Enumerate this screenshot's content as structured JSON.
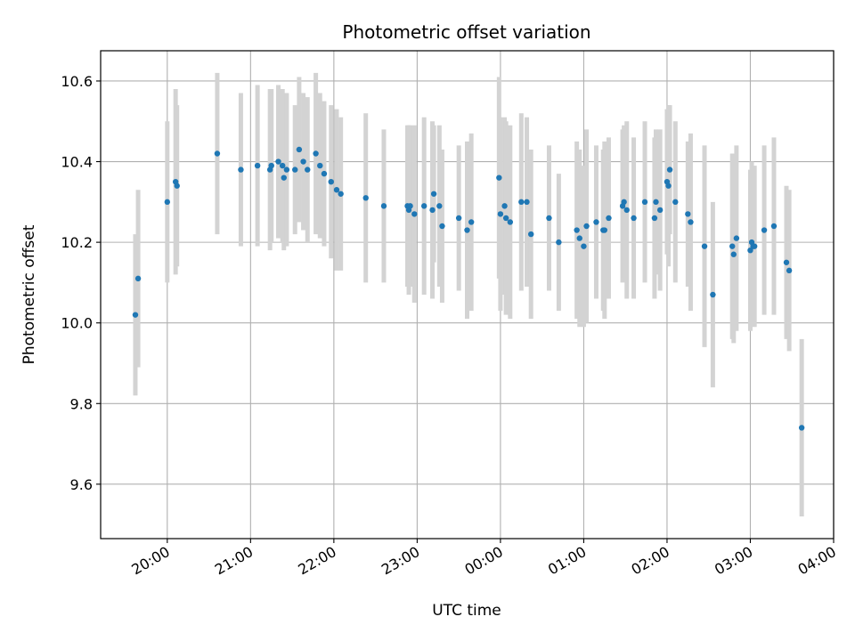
{
  "chart_data": {
    "type": "scatter",
    "title": "Photometric offset variation",
    "xlabel": "UTC time",
    "ylabel": "Photometric offset",
    "xlim": [
      "19:12",
      "04:00"
    ],
    "ylim": [
      9.465,
      10.675
    ],
    "grid": true,
    "x_ticks": [
      "20:00",
      "21:00",
      "22:00",
      "23:00",
      "00:00",
      "01:00",
      "02:00",
      "03:00",
      "04:00"
    ],
    "y_ticks": [
      9.6,
      9.8,
      10.0,
      10.2,
      10.4,
      10.6
    ],
    "marker_color": "#1f77b4",
    "errorbar_color": "#d3d3d3",
    "series": [
      {
        "x": [
          "19:37",
          "19:39",
          "20:00",
          "20:06",
          "20:07",
          "20:36",
          "20:53",
          "21:05",
          "21:14",
          "21:15",
          "21:20",
          "21:23",
          "21:24",
          "21:26",
          "21:32",
          "21:35",
          "21:38",
          "21:41",
          "21:47",
          "21:50",
          "21:53",
          "21:58",
          "22:02",
          "22:05",
          "22:23",
          "22:36",
          "22:53",
          "22:54",
          "22:55",
          "22:58",
          "23:05",
          "23:11",
          "23:12",
          "23:16",
          "23:18",
          "23:30",
          "23:36",
          "23:39",
          "23:59",
          "24:00",
          "24:03",
          "24:04",
          "24:07",
          "24:15",
          "24:19",
          "24:22",
          "24:35",
          "24:42",
          "24:55",
          "24:57",
          "25:00",
          "25:02",
          "25:09",
          "25:14",
          "25:15",
          "25:18",
          "25:28",
          "25:29",
          "25:31",
          "25:36",
          "25:44",
          "25:51",
          "25:52",
          "25:55",
          "26:00",
          "26:01",
          "26:02",
          "26:06",
          "26:15",
          "26:17",
          "26:27",
          "26:33",
          "26:47",
          "26:48",
          "26:50",
          "27:00",
          "27:01",
          "27:02",
          "27:03",
          "27:10",
          "27:17",
          "27:26",
          "27:28",
          "27:37"
        ],
        "y": [
          10.02,
          10.11,
          10.3,
          10.35,
          10.34,
          10.42,
          10.38,
          10.39,
          10.38,
          10.39,
          10.4,
          10.39,
          10.36,
          10.38,
          10.38,
          10.43,
          10.4,
          10.38,
          10.42,
          10.39,
          10.37,
          10.35,
          10.33,
          10.32,
          10.31,
          10.29,
          10.29,
          10.28,
          10.29,
          10.27,
          10.29,
          10.28,
          10.32,
          10.29,
          10.24,
          10.26,
          10.23,
          10.25,
          10.36,
          10.27,
          10.29,
          10.26,
          10.25,
          10.3,
          10.3,
          10.22,
          10.26,
          10.2,
          10.23,
          10.21,
          10.19,
          10.24,
          10.25,
          10.23,
          10.23,
          10.26,
          10.29,
          10.3,
          10.28,
          10.26,
          10.3,
          10.26,
          10.3,
          10.28,
          10.35,
          10.34,
          10.38,
          10.3,
          10.27,
          10.25,
          10.19,
          10.07,
          10.19,
          10.17,
          10.21,
          10.18,
          10.2,
          10.19,
          10.19,
          10.23,
          10.24,
          10.15,
          10.13,
          9.74
        ],
        "err": [
          0.2,
          0.22,
          0.2,
          0.23,
          0.2,
          0.2,
          0.19,
          0.2,
          0.2,
          0.19,
          0.19,
          0.19,
          0.18,
          0.19,
          0.16,
          0.18,
          0.17,
          0.18,
          0.2,
          0.18,
          0.18,
          0.19,
          0.2,
          0.19,
          0.21,
          0.19,
          0.2,
          0.21,
          0.2,
          0.22,
          0.22,
          0.22,
          0.17,
          0.2,
          0.19,
          0.18,
          0.22,
          0.22,
          0.25,
          0.24,
          0.22,
          0.24,
          0.24,
          0.22,
          0.21,
          0.21,
          0.18,
          0.17,
          0.22,
          0.22,
          0.2,
          0.24,
          0.19,
          0.2,
          0.22,
          0.2,
          0.19,
          0.19,
          0.22,
          0.2,
          0.2,
          0.2,
          0.18,
          0.2,
          0.18,
          0.2,
          0.16,
          0.2,
          0.18,
          0.22,
          0.25,
          0.23,
          0.23,
          0.22,
          0.23,
          0.2,
          0.2,
          0.19,
          0.2,
          0.21,
          0.22,
          0.19,
          0.2,
          0.22
        ]
      }
    ]
  }
}
